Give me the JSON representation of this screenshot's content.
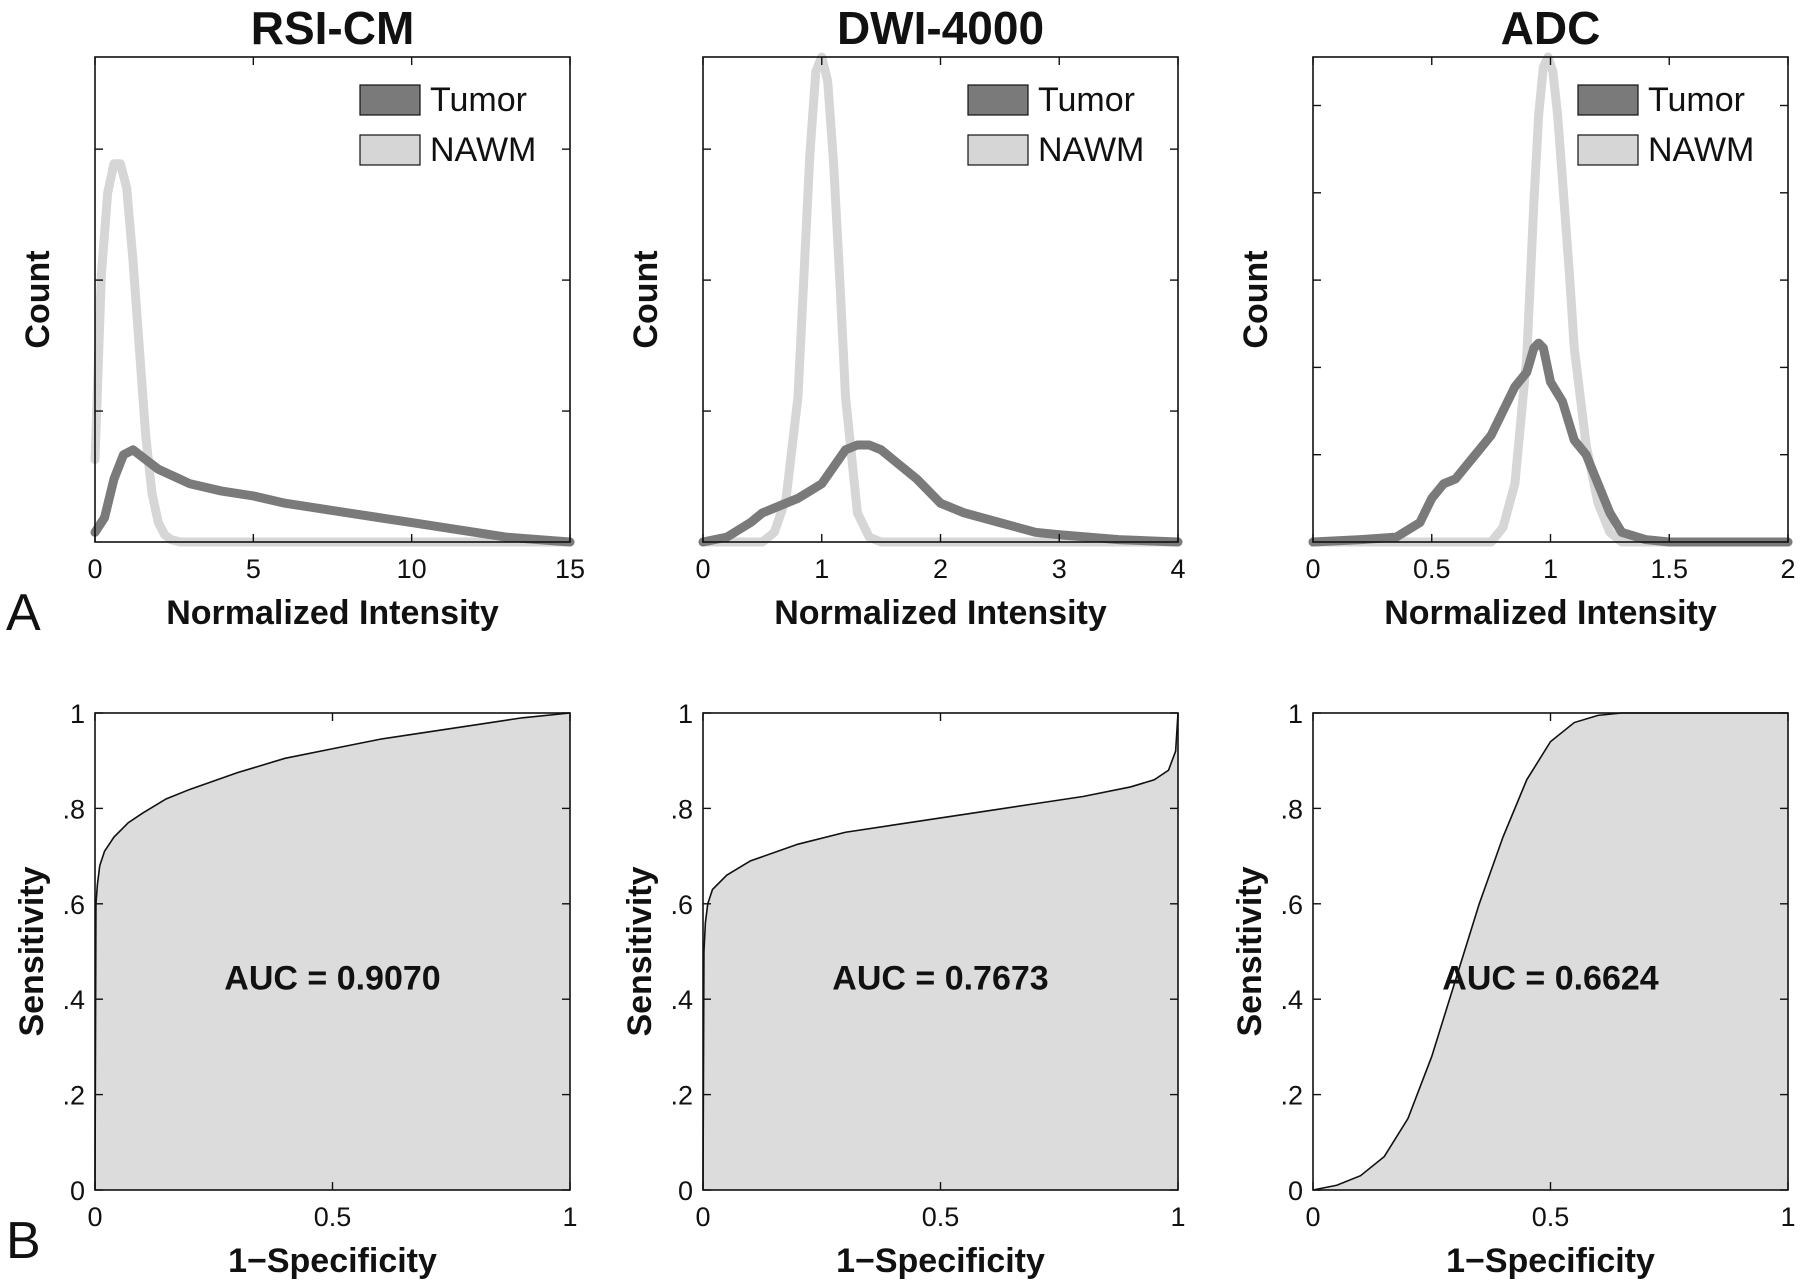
{
  "panel_labels": [
    "A",
    "B"
  ],
  "colors": {
    "tumor": "#7a7a7a",
    "nawm": "#d6d6d6",
    "auc_fill": "#dcdcdc",
    "axes": "#111111"
  },
  "chart_data": [
    {
      "type": "line",
      "title": "RSI-CM",
      "xlabel": "Normalized Intensity",
      "ylabel": "Count",
      "xlim": [
        0,
        15
      ],
      "ylim": [
        0,
        1
      ],
      "x_ticks": [
        0,
        5,
        10,
        15
      ],
      "x_tick_labels": [
        "0",
        "5",
        "10",
        "15"
      ],
      "y_ticks": [
        0.27,
        0.54,
        0.81
      ],
      "y_tick_labels": [
        "",
        "",
        ""
      ],
      "legend": {
        "position": "top-right"
      },
      "series": [
        {
          "name": "Tumor",
          "x": [
            0,
            0.3,
            0.6,
            0.9,
            1.2,
            1.6,
            2.0,
            2.5,
            3.0,
            4,
            5,
            6,
            7,
            8,
            9,
            10,
            11,
            12,
            13,
            14,
            15
          ],
          "y": [
            0.02,
            0.05,
            0.13,
            0.18,
            0.19,
            0.17,
            0.15,
            0.135,
            0.12,
            0.105,
            0.095,
            0.08,
            0.07,
            0.06,
            0.05,
            0.04,
            0.03,
            0.02,
            0.01,
            0.005,
            0.0
          ]
        },
        {
          "name": "NAWM",
          "x": [
            0,
            0.2,
            0.4,
            0.6,
            0.8,
            1.0,
            1.2,
            1.4,
            1.6,
            1.8,
            2.0,
            2.2,
            2.4,
            2.7,
            3.0,
            15
          ],
          "y": [
            0.17,
            0.55,
            0.72,
            0.78,
            0.78,
            0.73,
            0.58,
            0.4,
            0.22,
            0.1,
            0.04,
            0.015,
            0.005,
            0.0,
            0.0,
            0.0
          ]
        }
      ]
    },
    {
      "type": "line",
      "title": "DWI-4000",
      "xlabel": "Normalized Intensity",
      "ylabel": "Count",
      "xlim": [
        0,
        4
      ],
      "ylim": [
        0,
        1
      ],
      "x_ticks": [
        0,
        1,
        2,
        3,
        4
      ],
      "x_tick_labels": [
        "0",
        "1",
        "2",
        "3",
        "4"
      ],
      "y_ticks": [
        0.27,
        0.54,
        0.81
      ],
      "y_tick_labels": [
        "",
        "",
        ""
      ],
      "legend": {
        "position": "top-right"
      },
      "series": [
        {
          "name": "Tumor",
          "x": [
            0,
            0.2,
            0.4,
            0.5,
            0.6,
            0.8,
            1.0,
            1.2,
            1.3,
            1.4,
            1.5,
            1.6,
            1.8,
            2.0,
            2.2,
            2.5,
            2.8,
            3.0,
            3.5,
            4.0
          ],
          "y": [
            0.0,
            0.01,
            0.04,
            0.06,
            0.07,
            0.09,
            0.12,
            0.19,
            0.2,
            0.2,
            0.19,
            0.17,
            0.13,
            0.08,
            0.06,
            0.04,
            0.02,
            0.015,
            0.005,
            0.0
          ]
        },
        {
          "name": "NAWM",
          "x": [
            0,
            0.5,
            0.6,
            0.7,
            0.8,
            0.85,
            0.9,
            0.95,
            1.0,
            1.05,
            1.1,
            1.15,
            1.2,
            1.3,
            1.4,
            1.5,
            4.0
          ],
          "y": [
            0.0,
            0.0,
            0.02,
            0.09,
            0.3,
            0.55,
            0.8,
            0.97,
            1.0,
            0.95,
            0.78,
            0.55,
            0.3,
            0.06,
            0.01,
            0.0,
            0.0
          ]
        }
      ]
    },
    {
      "type": "line",
      "title": "ADC",
      "xlabel": "Normalized Intensity",
      "ylabel": "Count",
      "xlim": [
        0,
        2
      ],
      "ylim": [
        0,
        1
      ],
      "x_ticks": [
        0,
        0.5,
        1,
        1.5,
        2
      ],
      "x_tick_labels": [
        "0",
        "0.5",
        "1",
        "1.5",
        "2"
      ],
      "y_ticks": [
        0.18,
        0.36,
        0.54,
        0.72,
        0.9
      ],
      "y_tick_labels": [
        "",
        "",
        "",
        "",
        ""
      ],
      "legend": {
        "position": "top-right"
      },
      "series": [
        {
          "name": "Tumor",
          "x": [
            0,
            0.2,
            0.35,
            0.45,
            0.5,
            0.55,
            0.6,
            0.65,
            0.7,
            0.75,
            0.8,
            0.85,
            0.9,
            0.93,
            0.95,
            0.97,
            1.0,
            1.05,
            1.1,
            1.15,
            1.2,
            1.25,
            1.3,
            1.4,
            1.5,
            2.0
          ],
          "y": [
            0.0,
            0.005,
            0.01,
            0.04,
            0.09,
            0.12,
            0.13,
            0.16,
            0.19,
            0.22,
            0.27,
            0.32,
            0.35,
            0.4,
            0.41,
            0.4,
            0.33,
            0.29,
            0.21,
            0.18,
            0.12,
            0.06,
            0.02,
            0.005,
            0.0,
            0.0
          ]
        },
        {
          "name": "NAWM",
          "x": [
            0,
            0.75,
            0.8,
            0.85,
            0.9,
            0.93,
            0.95,
            0.97,
            0.99,
            1.01,
            1.03,
            1.05,
            1.08,
            1.1,
            1.15,
            1.2,
            1.25,
            1.3,
            2.0
          ],
          "y": [
            0.0,
            0.0,
            0.03,
            0.12,
            0.38,
            0.7,
            0.88,
            0.98,
            1.0,
            0.97,
            0.88,
            0.75,
            0.55,
            0.4,
            0.2,
            0.08,
            0.02,
            0.0,
            0.0
          ]
        }
      ]
    },
    {
      "type": "area",
      "title": "",
      "xlabel": "1−Specificity",
      "ylabel": "Sensitivity",
      "xlim": [
        0,
        1
      ],
      "ylim": [
        0,
        1
      ],
      "x_ticks": [
        0,
        0.5,
        1
      ],
      "x_tick_labels": [
        "0",
        "0.5",
        "1"
      ],
      "y_ticks": [
        0,
        0.2,
        0.4,
        0.6,
        0.8,
        1
      ],
      "y_tick_labels": [
        "0",
        ".2",
        ".4",
        ".6",
        ".8",
        "1"
      ],
      "annotation": "AUC = 0.9070",
      "x": [
        0,
        0.002,
        0.005,
        0.01,
        0.02,
        0.04,
        0.07,
        0.1,
        0.15,
        0.2,
        0.3,
        0.4,
        0.5,
        0.6,
        0.7,
        0.8,
        0.9,
        1.0
      ],
      "y": [
        0,
        0.6,
        0.64,
        0.68,
        0.71,
        0.74,
        0.77,
        0.79,
        0.82,
        0.84,
        0.875,
        0.905,
        0.925,
        0.945,
        0.96,
        0.975,
        0.99,
        1.0
      ]
    },
    {
      "type": "area",
      "title": "",
      "xlabel": "1−Specificity",
      "ylabel": "Sensitivity",
      "xlim": [
        0,
        1
      ],
      "ylim": [
        0,
        1
      ],
      "x_ticks": [
        0,
        0.5,
        1
      ],
      "x_tick_labels": [
        "0",
        "0.5",
        "1"
      ],
      "y_ticks": [
        0,
        0.2,
        0.4,
        0.6,
        0.8,
        1
      ],
      "y_tick_labels": [
        "0",
        ".2",
        ".4",
        ".6",
        ".8",
        "1"
      ],
      "annotation": "AUC = 0.7673",
      "x": [
        0,
        0.002,
        0.005,
        0.01,
        0.02,
        0.05,
        0.1,
        0.2,
        0.3,
        0.4,
        0.5,
        0.6,
        0.7,
        0.8,
        0.9,
        0.95,
        0.98,
        0.995,
        1.0
      ],
      "y": [
        0,
        0.5,
        0.56,
        0.6,
        0.63,
        0.66,
        0.69,
        0.725,
        0.75,
        0.765,
        0.78,
        0.795,
        0.81,
        0.825,
        0.845,
        0.86,
        0.88,
        0.92,
        1.0
      ]
    },
    {
      "type": "area",
      "title": "",
      "xlabel": "1−Specificity",
      "ylabel": "Sensitivity",
      "xlim": [
        0,
        1
      ],
      "ylim": [
        0,
        1
      ],
      "x_ticks": [
        0,
        0.5,
        1
      ],
      "x_tick_labels": [
        "0",
        "0.5",
        "1"
      ],
      "y_ticks": [
        0,
        0.2,
        0.4,
        0.6,
        0.8,
        1
      ],
      "y_tick_labels": [
        "0",
        ".2",
        ".4",
        ".6",
        ".8",
        "1"
      ],
      "annotation": "AUC = 0.6624",
      "x": [
        0,
        0.05,
        0.1,
        0.15,
        0.2,
        0.25,
        0.3,
        0.35,
        0.4,
        0.45,
        0.5,
        0.55,
        0.6,
        0.65,
        0.7,
        1.0
      ],
      "y": [
        0,
        0.01,
        0.03,
        0.07,
        0.15,
        0.28,
        0.44,
        0.6,
        0.74,
        0.86,
        0.94,
        0.98,
        0.995,
        1.0,
        1.0,
        1.0
      ]
    }
  ]
}
